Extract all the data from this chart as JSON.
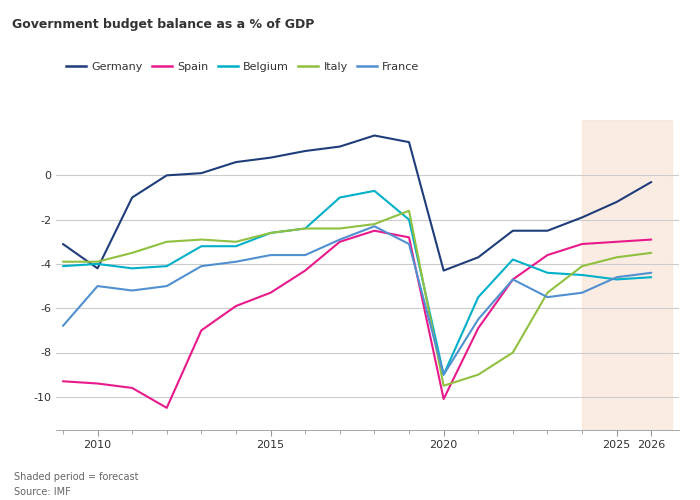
{
  "title": "Government budget balance as a % of GDP",
  "note": "Shaded period = forecast",
  "source": "Source: IMF",
  "forecast_start": 2024,
  "forecast_end": 2026.6,
  "bg_color": "#ffffff",
  "plot_bg_color": "#ffffff",
  "forecast_fill_color": "#f7e0d0",
  "forecast_fill_alpha": 0.6,
  "grid_color": "#cccccc",
  "tick_color": "#999999",
  "text_color": "#333333",
  "note_color": "#666666",
  "series": {
    "Germany": {
      "color": "#1f3d7a",
      "years": [
        2009,
        2010,
        2011,
        2012,
        2013,
        2014,
        2015,
        2016,
        2017,
        2018,
        2019,
        2020,
        2021,
        2022,
        2023,
        2024,
        2025,
        2026
      ],
      "values": [
        -3.1,
        -4.2,
        -1.0,
        0.0,
        0.1,
        0.6,
        0.8,
        1.1,
        1.3,
        1.8,
        1.5,
        -4.3,
        -3.7,
        -2.5,
        -2.5,
        -1.9,
        -1.2,
        -0.3
      ]
    },
    "Spain": {
      "color": "#e8198b",
      "years": [
        2009,
        2010,
        2011,
        2012,
        2013,
        2014,
        2015,
        2016,
        2017,
        2018,
        2019,
        2020,
        2021,
        2022,
        2023,
        2024,
        2025,
        2026
      ],
      "values": [
        -9.3,
        -9.4,
        -9.6,
        -10.5,
        -7.0,
        -5.9,
        -5.3,
        -4.3,
        -3.0,
        -2.5,
        -2.8,
        -10.1,
        -6.9,
        -4.7,
        -3.6,
        -3.1,
        -3.0,
        -2.9
      ]
    },
    "Belgium": {
      "color": "#00b0c8",
      "years": [
        2009,
        2010,
        2011,
        2012,
        2013,
        2014,
        2015,
        2016,
        2017,
        2018,
        2019,
        2020,
        2021,
        2022,
        2023,
        2024,
        2025,
        2026
      ],
      "values": [
        -4.1,
        -4.0,
        -4.2,
        -4.1,
        -3.2,
        -3.2,
        -2.6,
        -2.4,
        -1.0,
        -0.7,
        -2.0,
        -9.0,
        -5.5,
        -3.8,
        -4.4,
        -4.5,
        -4.7,
        -4.6
      ]
    },
    "Italy": {
      "color": "#90c040",
      "years": [
        2009,
        2010,
        2011,
        2012,
        2013,
        2014,
        2015,
        2016,
        2017,
        2018,
        2019,
        2020,
        2021,
        2022,
        2023,
        2024,
        2025,
        2026
      ],
      "values": [
        -3.9,
        -3.9,
        -3.5,
        -3.0,
        -2.9,
        -3.0,
        -2.6,
        -2.4,
        -2.4,
        -2.2,
        -1.6,
        -9.5,
        -9.0,
        -8.0,
        -5.3,
        -4.1,
        -3.7,
        -3.5
      ]
    },
    "France": {
      "color": "#5090d0",
      "years": [
        2009,
        2010,
        2011,
        2012,
        2013,
        2014,
        2015,
        2016,
        2017,
        2018,
        2019,
        2020,
        2021,
        2022,
        2023,
        2024,
        2025,
        2026
      ],
      "values": [
        -6.8,
        -5.0,
        -5.2,
        -5.0,
        -4.1,
        -3.9,
        -3.6,
        -3.6,
        -2.9,
        -2.3,
        -3.1,
        -9.0,
        -6.5,
        -4.7,
        -5.5,
        -5.3,
        -4.6,
        -4.4
      ]
    }
  },
  "ylim": [
    -11.5,
    2.5
  ],
  "yticks": [
    0,
    -2,
    -4,
    -6,
    -8,
    -10
  ],
  "xlim_min": 2008.8,
  "xlim_max": 2026.8,
  "xtick_years": [
    2010,
    2015,
    2020,
    2025,
    2026
  ],
  "xtick_labels": [
    "2010",
    "2015",
    "2020",
    "2025",
    "2026"
  ]
}
